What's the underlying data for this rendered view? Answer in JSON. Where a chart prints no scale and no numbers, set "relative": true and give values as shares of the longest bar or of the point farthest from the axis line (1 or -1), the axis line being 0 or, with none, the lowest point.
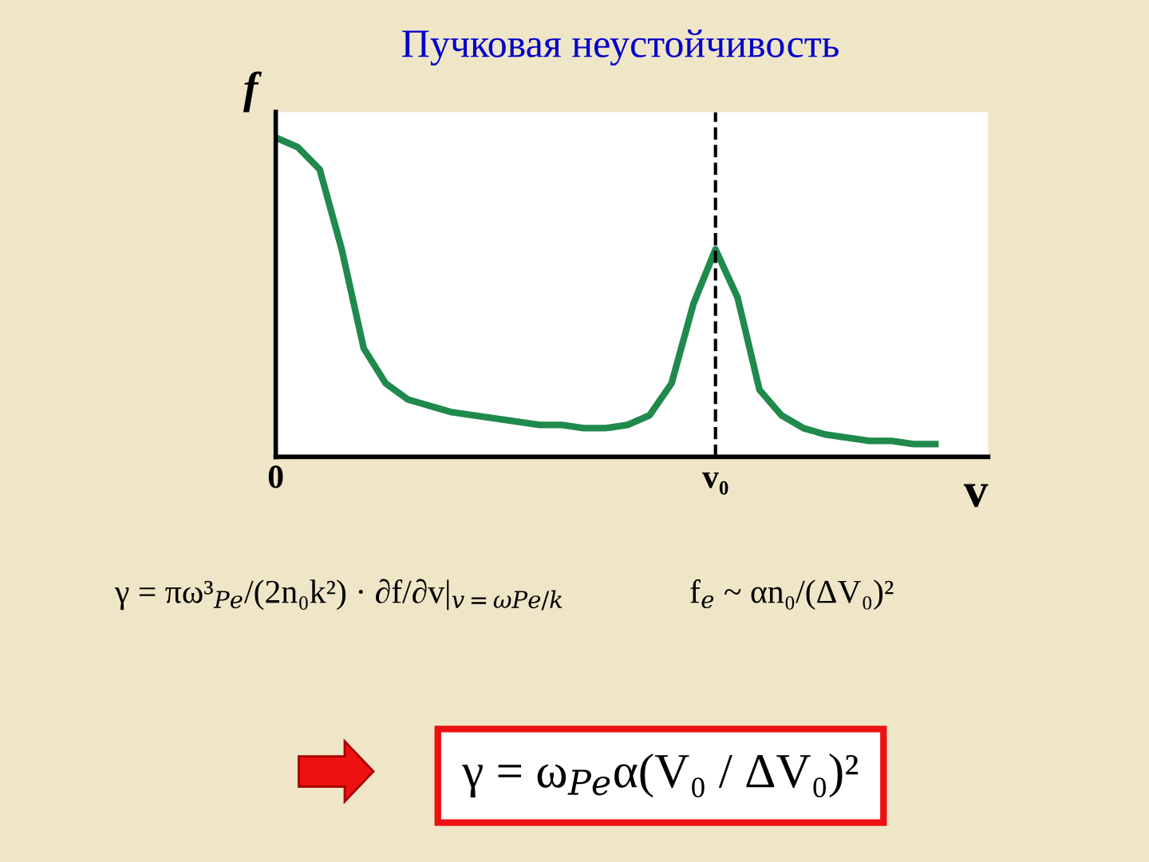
{
  "chart_data": {
    "type": "line",
    "title": "Пучковая неустойчивость",
    "xlabel": "v",
    "ylabel": "f",
    "relative": true,
    "tick_labels": "x",
    "grid": false,
    "legend": false,
    "marker": "none",
    "line_style": "solid",
    "categories": [
      "0",
      null,
      null,
      null,
      null,
      null,
      null,
      null,
      null,
      null,
      null,
      null,
      null,
      null,
      null,
      null,
      null,
      null,
      null,
      null,
      "v₀",
      null,
      null,
      null,
      null,
      null,
      null,
      null,
      null,
      null,
      null
    ],
    "series": [
      {
        "color": "#1f8a4c",
        "values": [
          1.0,
          0.97,
          0.9,
          0.65,
          0.34,
          0.23,
          0.18,
          0.16,
          0.14,
          0.13,
          0.12,
          0.11,
          0.1,
          0.1,
          0.09,
          0.09,
          0.1,
          0.13,
          0.23,
          0.48,
          0.65,
          0.5,
          0.21,
          0.13,
          0.09,
          0.07,
          0.06,
          0.05,
          0.05,
          0.04,
          0.04
        ]
      }
    ],
    "ref_lines": [
      {
        "axis": "x",
        "value": "v₀",
        "label": null,
        "color": "#000000",
        "line_style": "dashed"
      }
    ],
    "annotations": [
      "γ = πω³$_{Pe}$/(2n₀k²) · ∂f/∂v|$_{v=ωPe/k}$",
      "f$_{e}$ ~ αn₀/(ΔV₀)²",
      "γ = ω$_{Pe}$α(V₀ / ΔV₀)²"
    ]
  }
}
